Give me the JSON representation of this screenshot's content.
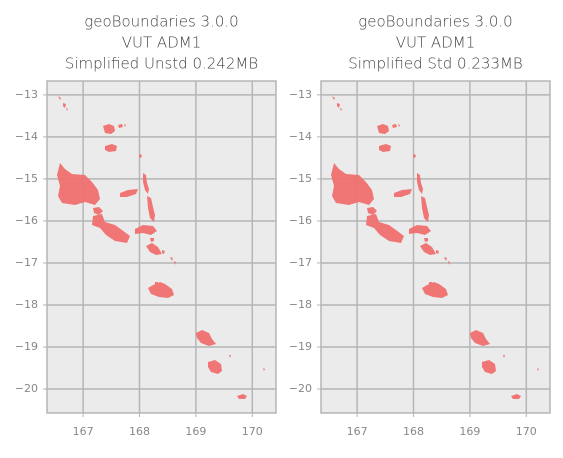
{
  "chart_data": [
    {
      "type": "map",
      "title": [
        "geoBoundaries 3.0.0",
        "VUT ADM1",
        "Simplified Unstd 0.242MB"
      ],
      "xlim": [
        166.36,
        170.42
      ],
      "ylim": [
        -20.57,
        -12.67
      ],
      "xticks": [
        167,
        168,
        169,
        170
      ],
      "yticks": [
        {
          "value": -13,
          "label": "−13"
        },
        {
          "value": -14,
          "label": "−14"
        },
        {
          "value": -15,
          "label": "−15"
        },
        {
          "value": -16,
          "label": "−16"
        },
        {
          "value": -17,
          "label": "−17"
        },
        {
          "value": -18,
          "label": "−18"
        },
        {
          "value": -19,
          "label": "−19"
        },
        {
          "value": -20,
          "label": "−20"
        }
      ],
      "grid": true,
      "color": "#f07070"
    },
    {
      "type": "map",
      "title": [
        "geoBoundaries 3.0.0",
        "VUT ADM1",
        "Simplified Std 0.233MB"
      ],
      "xlim": [
        166.36,
        170.42
      ],
      "ylim": [
        -20.57,
        -12.67
      ],
      "xticks": [
        167,
        168,
        169,
        170
      ],
      "yticks": [
        {
          "value": -13,
          "label": "−13"
        },
        {
          "value": -14,
          "label": "−14"
        },
        {
          "value": -15,
          "label": "−15"
        },
        {
          "value": -16,
          "label": "−16"
        },
        {
          "value": -17,
          "label": "−17"
        },
        {
          "value": -18,
          "label": "−18"
        },
        {
          "value": -19,
          "label": "−19"
        },
        {
          "value": -20,
          "label": "−20"
        }
      ],
      "grid": true,
      "color": "#f07070"
    }
  ]
}
